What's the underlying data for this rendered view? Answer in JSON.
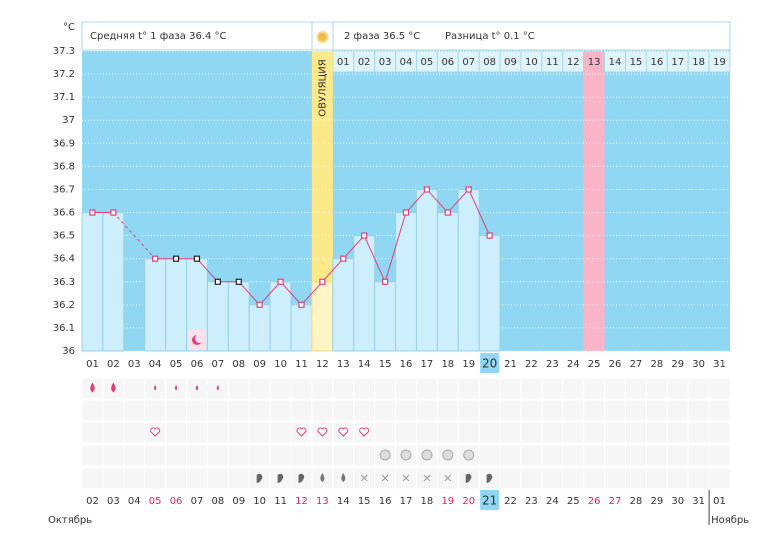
{
  "header": {
    "unit": "°C",
    "phase1": "Средняя t° 1 фаза 36.4 °C",
    "phase2": "2 фаза 36.5 °C",
    "diff": "Разница t° 0.1 °C",
    "ovulation": "ОВУЛЯЦИЯ"
  },
  "chart_data": {
    "type": "line",
    "categories": [
      "01",
      "02",
      "03",
      "04",
      "05",
      "06",
      "07",
      "08",
      "09",
      "10",
      "11",
      "12",
      "13",
      "14",
      "15",
      "16",
      "17",
      "18",
      "19",
      "20",
      "21",
      "22",
      "23",
      "24",
      "25",
      "26",
      "27",
      "28",
      "29",
      "30",
      "31"
    ],
    "values": [
      36.6,
      36.6,
      null,
      36.4,
      36.4,
      36.4,
      36.3,
      36.3,
      36.2,
      36.3,
      36.2,
      36.3,
      36.4,
      36.5,
      36.3,
      36.6,
      36.7,
      36.6,
      36.7,
      36.5,
      null,
      null,
      null,
      null,
      null,
      null,
      null,
      null,
      null,
      null,
      null
    ],
    "marker_colors": [
      "#e0407a",
      "#e0407a",
      null,
      "#e0407a",
      "#222",
      "#222",
      "#222",
      "#222",
      "#e0407a",
      "#e0407a",
      "#e0407a",
      "#e0407a",
      "#e0407a",
      "#e0407a",
      "#e0407a",
      "#e0407a",
      "#e0407a",
      "#e0407a",
      "#e0407a",
      "#e0407a",
      null,
      null,
      null,
      null,
      null,
      null,
      null,
      null,
      null,
      null,
      null
    ],
    "color": "#e0407a",
    "background": "#8fd7f3",
    "bar_color": "#cdeefb",
    "ylim": [
      36,
      37.3
    ],
    "yticks": [
      36,
      36.1,
      36.2,
      36.3,
      36.4,
      36.5,
      36.6,
      36.7,
      36.8,
      36.9,
      37,
      37.1,
      37.2,
      37.3
    ],
    "grid": true,
    "ovulation_index": 11,
    "highlight_index": 19,
    "pink_index": 24,
    "phase2_days": [
      "01",
      "02",
      "03",
      "04",
      "05",
      "06",
      "07",
      "08",
      "09",
      "10",
      "11",
      "12",
      "13",
      "14",
      "15",
      "16",
      "17",
      "18",
      "19"
    ],
    "dates": [
      "02",
      "03",
      "04",
      "05",
      "06",
      "07",
      "08",
      "09",
      "10",
      "11",
      "12",
      "13",
      "14",
      "15",
      "16",
      "17",
      "18",
      "19",
      "20",
      "21",
      "22",
      "23",
      "24",
      "25",
      "26",
      "27",
      "28",
      "29",
      "30",
      "31",
      "01"
    ],
    "weekend_indices": [
      3,
      4,
      10,
      11,
      17,
      18,
      24,
      25
    ],
    "months": [
      "Октябрь",
      "Ноябрь"
    ]
  }
}
